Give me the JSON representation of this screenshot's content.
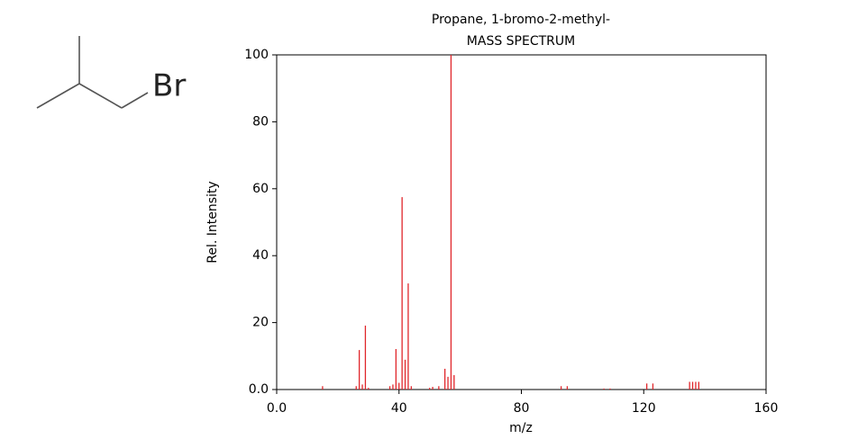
{
  "structure": {
    "atom_label": "Br"
  },
  "chart_data": {
    "type": "stem",
    "title": "Propane, 1-bromo-2-methyl-",
    "subtitle": "MASS SPECTRUM",
    "x_label": "m/z",
    "y_label": "Rel. Intensity",
    "color": "#e0262b",
    "x": [
      15,
      26,
      27,
      28,
      29,
      30,
      37,
      38,
      39,
      40,
      41,
      42,
      43,
      44,
      50,
      51,
      53,
      55,
      56,
      57,
      58,
      93,
      95,
      107,
      109,
      121,
      123,
      135,
      136,
      137,
      138
    ],
    "values": [
      1.0,
      1.0,
      11.8,
      1.5,
      19.1,
      0.5,
      1.0,
      1.5,
      12.1,
      2.0,
      57.5,
      8.9,
      31.7,
      1.0,
      0.5,
      0.8,
      1.0,
      6.2,
      3.8,
      100,
      4.3,
      1.0,
      1.0,
      0.3,
      0.3,
      1.8,
      1.8,
      2.3,
      2.3,
      2.3,
      2.3
    ],
    "xlim": [
      0,
      160
    ],
    "xticks": [
      {
        "value": 0,
        "label": "0.0"
      },
      40,
      80,
      120,
      160
    ],
    "ylim": [
      0,
      100
    ],
    "yticks": [
      {
        "value": 0,
        "label": "0.0"
      },
      20,
      40,
      60,
      80,
      100
    ]
  }
}
